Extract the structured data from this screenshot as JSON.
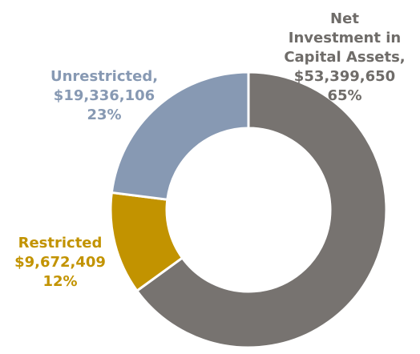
{
  "chart_data": {
    "type": "donut",
    "categories": [
      "Net Investment in Capital Assets,",
      "Restricted",
      "Unrestricted,"
    ],
    "values": [
      65,
      12,
      23
    ],
    "value_labels": [
      "65%",
      "12%",
      "23%"
    ],
    "amount_labels": [
      "$53,399,650",
      "$9,672,409",
      "$19,336,106"
    ],
    "colors": [
      "#777370",
      "#c29300",
      "#8799b3"
    ],
    "label_colors": [
      "#6f6c69",
      "#c29300",
      "#8799b3"
    ]
  }
}
